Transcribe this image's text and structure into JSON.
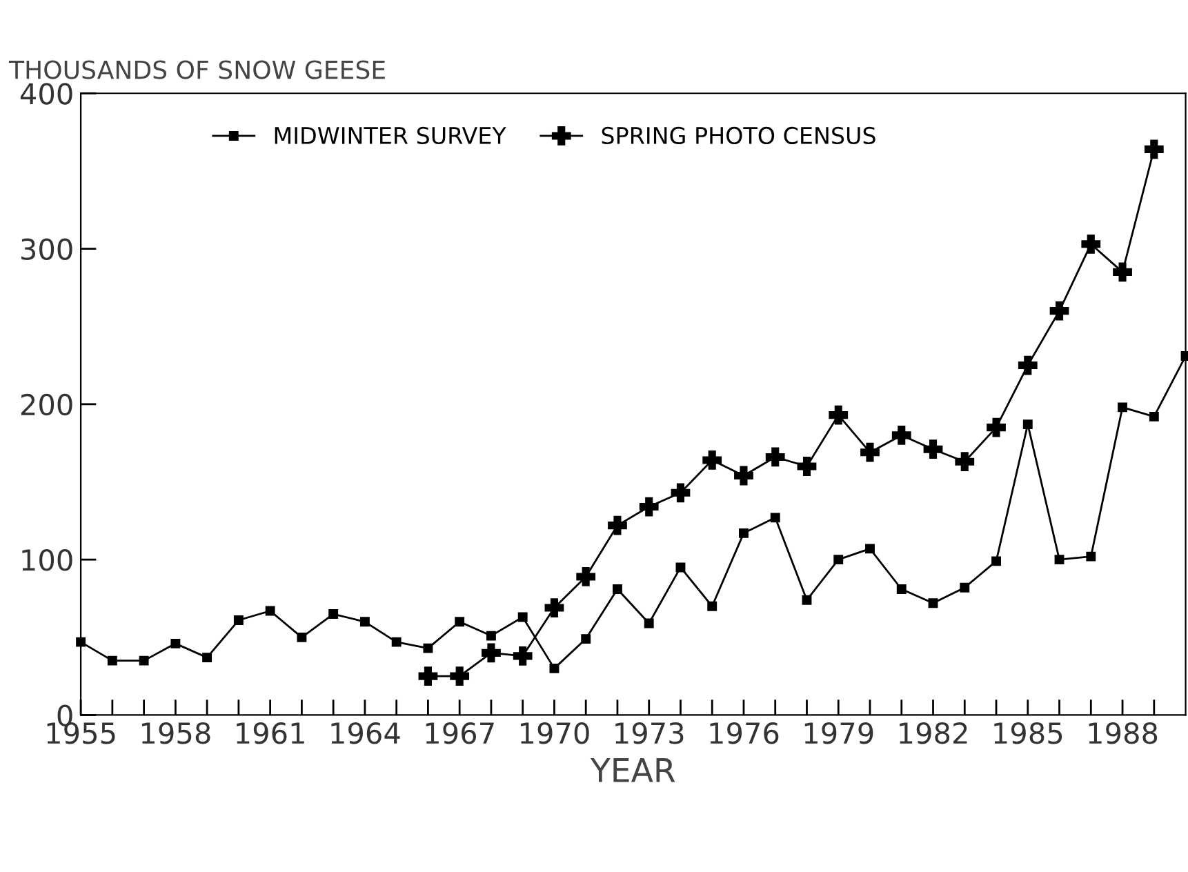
{
  "chart_data": {
    "type": "line",
    "xlabel": "YEAR",
    "ylabel": "THOUSANDS OF SNOW GEESE",
    "xlim": [
      1955,
      1990
    ],
    "ylim": [
      0,
      400
    ],
    "xticks": [
      1955,
      {
        "value": 1956,
        "label": null
      },
      {
        "value": 1957,
        "label": null
      },
      1958,
      {
        "value": 1959,
        "label": null
      },
      {
        "value": 1960,
        "label": null
      },
      1961,
      {
        "value": 1962,
        "label": null
      },
      {
        "value": 1963,
        "label": null
      },
      1964,
      {
        "value": 1965,
        "label": null
      },
      {
        "value": 1966,
        "label": null
      },
      1967,
      {
        "value": 1968,
        "label": null
      },
      {
        "value": 1969,
        "label": null
      },
      1970,
      {
        "value": 1971,
        "label": null
      },
      {
        "value": 1972,
        "label": null
      },
      1973,
      {
        "value": 1974,
        "label": null
      },
      {
        "value": 1975,
        "label": null
      },
      1976,
      {
        "value": 1977,
        "label": null
      },
      {
        "value": 1978,
        "label": null
      },
      1979,
      {
        "value": 1980,
        "label": null
      },
      {
        "value": 1981,
        "label": null
      },
      1982,
      {
        "value": 1983,
        "label": null
      },
      {
        "value": 1984,
        "label": null
      },
      1985,
      {
        "value": 1986,
        "label": null
      },
      {
        "value": 1987,
        "label": null
      },
      1988,
      {
        "value": 1989,
        "label": null
      }
    ],
    "yticks": [
      0,
      100,
      200,
      300,
      400
    ],
    "grid": false,
    "legend": "top",
    "series": [
      {
        "name": "MIDWINTER SURVEY",
        "color": "#000000",
        "marker": "square",
        "x": [
          1955,
          1956,
          1957,
          1958,
          1959,
          1960,
          1961,
          1962,
          1963,
          1964,
          1965,
          1966,
          1967,
          1968,
          1969,
          1970,
          1971,
          1972,
          1973,
          1974,
          1975,
          1976,
          1977,
          1978,
          1979,
          1980,
          1981,
          1982,
          1983,
          1984,
          1985,
          1986,
          1987,
          1988,
          1989,
          1990
        ],
        "values": [
          47,
          35,
          35,
          46,
          37,
          61,
          67,
          50,
          65,
          60,
          47,
          43,
          60,
          51,
          63,
          30,
          49,
          81,
          59,
          95,
          70,
          117,
          127,
          74,
          100,
          107,
          81,
          72,
          82,
          99,
          187,
          100,
          102,
          198,
          192,
          231
        ]
      },
      {
        "name": "SPRING PHOTO CENSUS",
        "color": "#000000",
        "marker": "cross",
        "x": [
          1966,
          1967,
          1968,
          1969,
          1970,
          1971,
          1972,
          1973,
          1974,
          1975,
          1976,
          1977,
          1978,
          1979,
          1980,
          1981,
          1982,
          1983,
          1984,
          1985,
          1986,
          1987,
          1988,
          1989
        ],
        "values": [
          25,
          25,
          40,
          38,
          69,
          89,
          122,
          134,
          143,
          164,
          154,
          166,
          160,
          193,
          169,
          180,
          171,
          163,
          185,
          225,
          260,
          303,
          285,
          364
        ]
      }
    ]
  }
}
